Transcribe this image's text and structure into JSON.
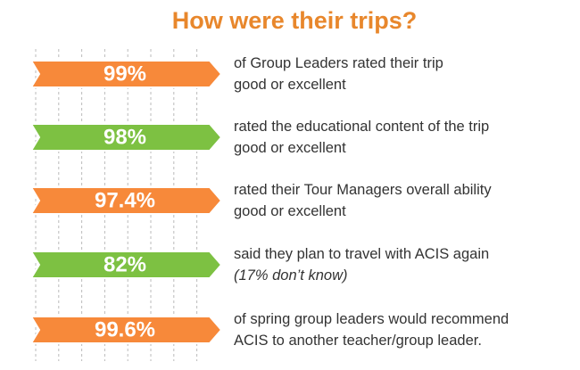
{
  "title": "How were their trips?",
  "items": [
    {
      "label": "99%",
      "lines": [
        "of Group Leaders rated their trip",
        "good or excellent"
      ],
      "color": "#f7893a"
    },
    {
      "label": "98%",
      "lines": [
        "rated the educational content of the trip",
        "good or excellent"
      ],
      "color": "#7dc142"
    },
    {
      "label": "97.4%",
      "lines": [
        "rated their Tour Managers overall ability",
        "good or excellent"
      ],
      "color": "#f7893a"
    },
    {
      "label": "82%",
      "lines": [
        "said they plan to travel with ACIS again",
        "(17% don’t know)"
      ],
      "color": "#7dc142"
    },
    {
      "label": "99.6%",
      "lines": [
        "of spring group leaders would recommend",
        "ACIS to another teacher/group leader."
      ],
      "color": "#f7893a"
    }
  ]
}
